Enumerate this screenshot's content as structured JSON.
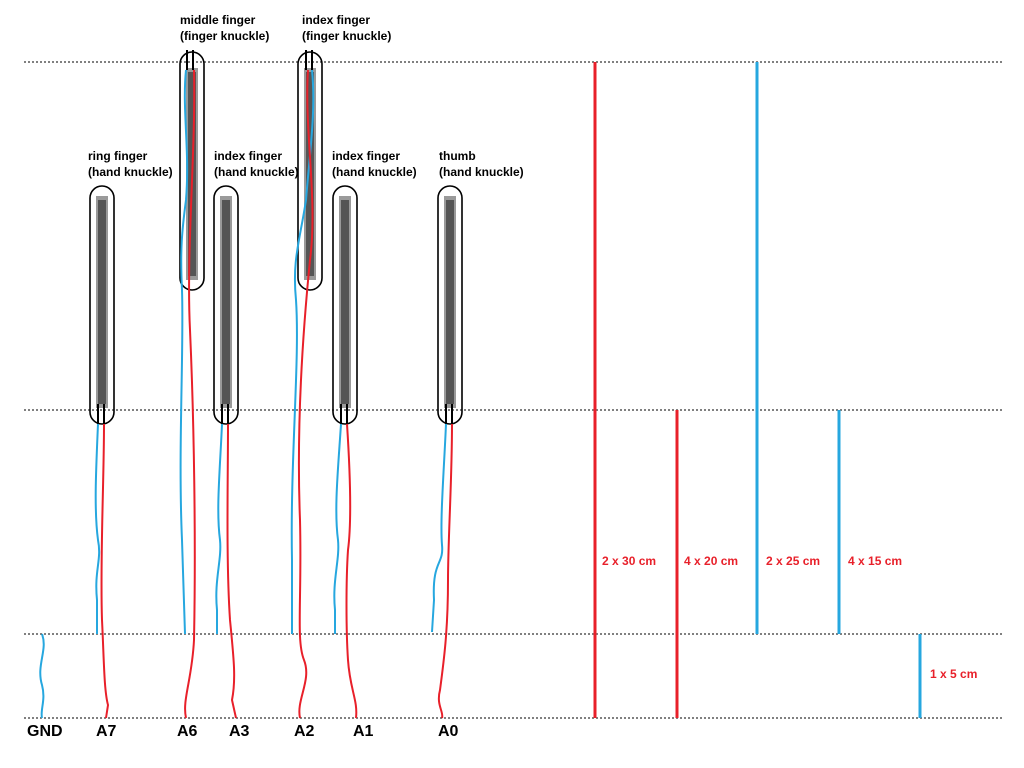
{
  "colors": {
    "red_wire": "#e8202a",
    "blue_wire": "#26a7df",
    "outline": "#000000",
    "sensor_dark": "#555555",
    "sensor_light": "#9a9a9a",
    "guide_line": "#000000"
  },
  "sensors": [
    {
      "id": "ring",
      "line1": "ring finger",
      "line2": "(hand knuckle)"
    },
    {
      "id": "middle",
      "line1": "middle finger",
      "line2": "(finger knuckle)"
    },
    {
      "id": "index-hand-a",
      "line1": "index finger",
      "line2": "(hand knuckle)"
    },
    {
      "id": "index-finger",
      "line1": "index finger",
      "line2": "(finger knuckle)"
    },
    {
      "id": "index-hand-b",
      "line1": "index finger",
      "line2": "(hand knuckle)"
    },
    {
      "id": "thumb",
      "line1": "thumb",
      "line2": "(hand knuckle)"
    }
  ],
  "pins": [
    "GND",
    "A7",
    "A6",
    "A3",
    "A2",
    "A1",
    "A0"
  ],
  "wire_lengths": [
    {
      "label": "2 x 30 cm",
      "color": "red"
    },
    {
      "label": "4 x 20 cm",
      "color": "red"
    },
    {
      "label": "2 x 25 cm",
      "color": "blue"
    },
    {
      "label": "4 x 15 cm",
      "color": "blue"
    },
    {
      "label": "1 x 5 cm",
      "color": "blue"
    }
  ]
}
